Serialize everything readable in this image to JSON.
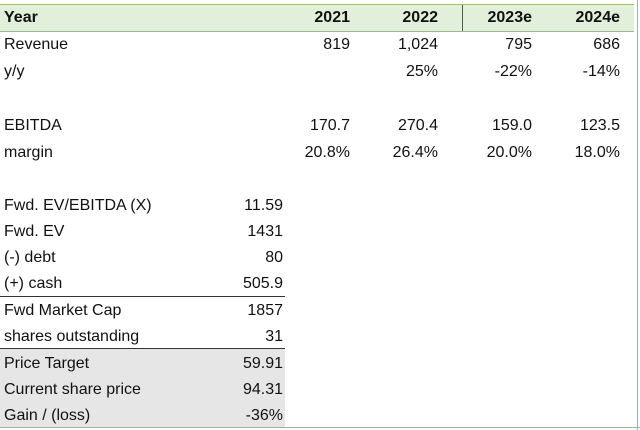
{
  "header": {
    "label": "Year",
    "years": [
      "2021",
      "2022",
      "2023e",
      "2024e"
    ]
  },
  "revenue": {
    "label": "Revenue",
    "values": [
      "819",
      "1,024",
      "795",
      "686"
    ]
  },
  "yoy": {
    "label": "y/y",
    "values": [
      "",
      "25%",
      "-22%",
      "-14%"
    ]
  },
  "ebitda": {
    "label": "EBITDA",
    "values": [
      "170.7",
      "270.4",
      "159.0",
      "123.5"
    ]
  },
  "margin": {
    "label": "margin",
    "values": [
      "20.8%",
      "26.4%",
      "20.0%",
      "18.0%"
    ]
  },
  "valuation": [
    {
      "label": "Fwd. EV/EBITDA (X)",
      "value": "11.59"
    },
    {
      "label": "Fwd. EV",
      "value": "1431"
    },
    {
      "label": "(-) debt",
      "value": "80"
    },
    {
      "label": "(+) cash",
      "value": "505.9"
    },
    {
      "label": "Fwd Market Cap",
      "value": "1857"
    },
    {
      "label": "shares outstanding",
      "value": "31"
    },
    {
      "label": "Price Target",
      "value": "59.91"
    },
    {
      "label": "Current share price",
      "value": "94.31"
    },
    {
      "label": "Gain / (loss)",
      "value": "-36%"
    }
  ],
  "colors": {
    "header_fill": "#e2efda",
    "summary_fill": "#e6e6e6",
    "border": "#9bbb83"
  }
}
